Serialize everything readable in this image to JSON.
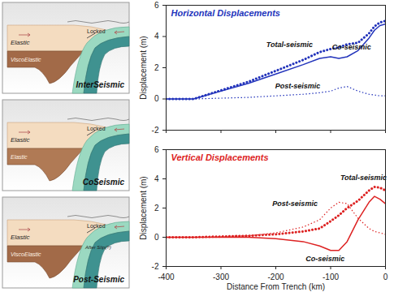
{
  "chart_data": [
    {
      "type": "line",
      "title": "Horizontal Displacements",
      "color": "#2233bb",
      "y_label": "Displacement (m)",
      "tick_labels": "y",
      "x": [
        -400,
        -350,
        -300,
        -250,
        -200,
        -150,
        -120,
        -100,
        -85,
        -70,
        -50,
        -30,
        -20,
        -10,
        0
      ],
      "series": [
        {
          "name": "Co-seismic",
          "color": "#2233bb",
          "line_style": "solid",
          "values": [
            0,
            0,
            0.5,
            1.0,
            1.6,
            2.2,
            2.6,
            2.7,
            2.6,
            2.7,
            3.1,
            3.9,
            4.4,
            4.7,
            4.8
          ]
        },
        {
          "name": "Post-seismic",
          "color": "#2233bb",
          "line_style": "dotted",
          "values": [
            0,
            0,
            0.05,
            0.1,
            0.2,
            0.3,
            0.4,
            0.5,
            0.7,
            0.8,
            0.5,
            0.3,
            0.25,
            0.2,
            0.2
          ]
        },
        {
          "name": "Total-seismic",
          "color": "#2233bb",
          "line_style": "heavy-dotted",
          "values": [
            0,
            0,
            0.55,
            1.1,
            1.8,
            2.5,
            3.0,
            3.2,
            3.3,
            3.5,
            3.6,
            4.2,
            4.65,
            4.9,
            5.0
          ]
        }
      ],
      "annotations": [
        {
          "text": "Total-seismic",
          "x": -175,
          "y": 3.5
        },
        {
          "text": "Co-seismic",
          "x": -62,
          "y": 3.3
        },
        {
          "text": "Post-seismic",
          "x": -160,
          "y": 0.8
        }
      ],
      "xlim": [
        -400,
        0
      ],
      "xticks": [
        -400,
        -300,
        -200,
        -100,
        0
      ],
      "ylim": [
        -2,
        6
      ],
      "yticks": [
        -2,
        0,
        2,
        4,
        6
      ],
      "grid": false
    },
    {
      "type": "line",
      "title": "Vertical Displacements",
      "color": "#dd2222",
      "x_label": "Distance From Trench (km)",
      "y_label": "Displacement (m)",
      "tick_labels": true,
      "x": [
        -400,
        -350,
        -300,
        -250,
        -200,
        -150,
        -120,
        -100,
        -85,
        -70,
        -50,
        -30,
        -20,
        -10,
        0
      ],
      "series": [
        {
          "name": "Co-seismic",
          "color": "#dd2222",
          "line_style": "solid",
          "values": [
            0,
            0,
            0,
            0,
            -0.1,
            -0.3,
            -0.6,
            -0.9,
            -0.9,
            -0.3,
            1.2,
            2.4,
            2.8,
            2.6,
            2.3
          ]
        },
        {
          "name": "Post-seismic",
          "color": "#dd2222",
          "line_style": "dotted",
          "values": [
            0,
            0,
            0.05,
            0.1,
            0.3,
            0.7,
            1.2,
            2.0,
            2.4,
            2.3,
            1.3,
            0.6,
            0.4,
            0.3,
            0.2
          ]
        },
        {
          "name": "Total-seismic",
          "color": "#dd2222",
          "line_style": "heavy-dotted",
          "values": [
            0,
            0,
            0.05,
            0.1,
            0.2,
            0.4,
            0.6,
            1.1,
            1.5,
            2.0,
            2.5,
            3.2,
            3.45,
            3.4,
            3.2
          ]
        }
      ],
      "annotations": [
        {
          "text": "Total-seismic",
          "x": -40,
          "y": 4.1
        },
        {
          "text": "Post-seismic",
          "x": -165,
          "y": 2.3
        },
        {
          "text": "Co-seismic",
          "x": -110,
          "y": -1.5
        }
      ],
      "xlim": [
        -400,
        0
      ],
      "xticks": [
        -400,
        -300,
        -200,
        -100,
        0
      ],
      "ylim": [
        -2,
        6
      ],
      "yticks": [
        -2,
        0,
        2,
        4,
        6
      ],
      "grid": false
    }
  ],
  "diagram": {
    "panels": [
      {
        "title": "InterSeismic",
        "upper_layer": "Elastic",
        "lower_layer": "ViscoElastic",
        "fault": "Locked"
      },
      {
        "title": "CoSeismic",
        "upper_layer": "Elastic",
        "lower_layer": "Elastic",
        "fault": "Locked"
      },
      {
        "title": "Post-Seismic",
        "upper_layer": "Elastic",
        "lower_layer": "ViscoElastic",
        "fault": "Locked",
        "slip": "After Slip(?)"
      }
    ]
  }
}
